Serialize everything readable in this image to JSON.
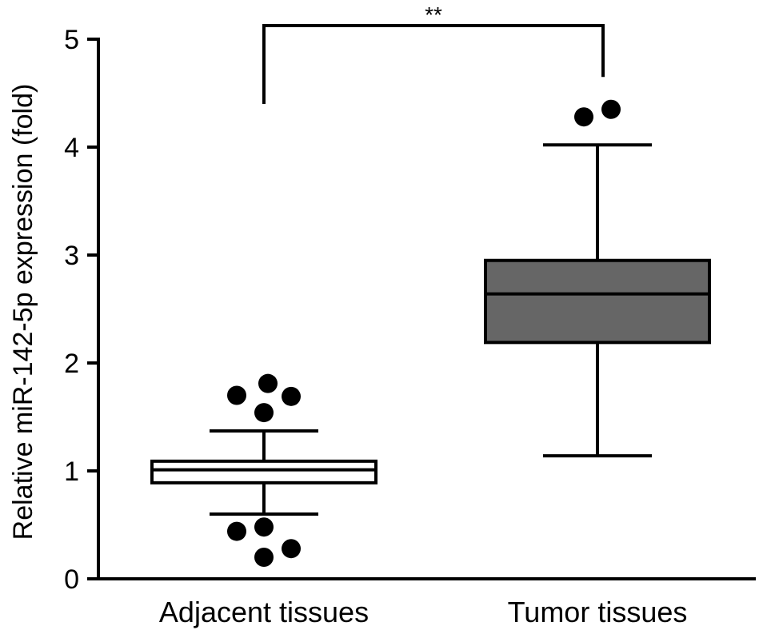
{
  "chart_data": {
    "type": "box",
    "ylabel": "Relative  miR-142-5p expression (fold)",
    "ylim": [
      0,
      5
    ],
    "yticks": [
      "0",
      "1",
      "2",
      "3",
      "4",
      "5"
    ],
    "grid": false,
    "categories": [
      "Adjacent tissues",
      "Tumor tissues"
    ],
    "boxes": [
      {
        "name": "Adjacent tissues",
        "whisker_low": 0.6,
        "q1": 0.89,
        "median": 1.01,
        "q3": 1.09,
        "whisker_high": 1.37,
        "outliers": [
          1.7,
          1.81,
          1.69,
          1.54,
          0.44,
          0.48,
          0.2,
          0.28
        ],
        "fill": "#ffffff"
      },
      {
        "name": "Tumor tissues",
        "whisker_low": 1.14,
        "q1": 2.19,
        "median": 2.64,
        "q3": 2.95,
        "whisker_high": 4.02,
        "outliers": [
          4.28,
          4.35
        ],
        "fill": "#666666"
      }
    ],
    "significance": {
      "label": "**",
      "between": [
        "Adjacent tissues",
        "Tumor tissues"
      ]
    }
  }
}
